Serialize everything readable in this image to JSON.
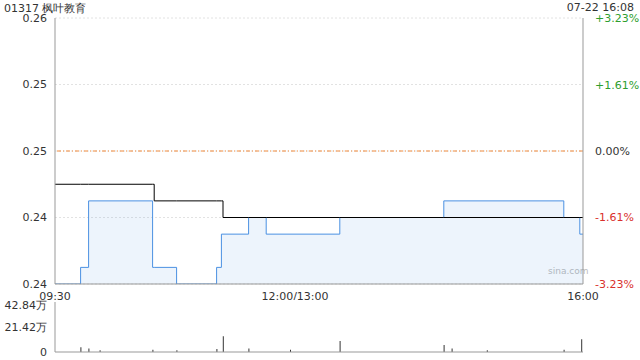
{
  "chart_data": [
    {
      "type": "line",
      "title": "01317 枫叶教育",
      "subtitle": "07-22 16:08",
      "annotations": [
        "sina.com"
      ],
      "x": [
        0,
        16,
        21,
        61,
        62,
        76,
        101,
        104,
        105,
        121,
        132,
        178,
        243,
        318,
        328,
        330
      ],
      "xlim": [
        0,
        330
      ],
      "xticks": [
        {
          "value": 0,
          "label": "09:30"
        },
        {
          "value": 150,
          "label": "12:00/13:00"
        },
        {
          "value": 330,
          "label": "16:00"
        }
      ],
      "ylim": [
        0.24,
        0.256
      ],
      "yticks": [
        {
          "value": 0.24,
          "label": "0.24"
        },
        {
          "value": 0.244,
          "label": "0.24"
        },
        {
          "value": 0.248,
          "label": "0.25"
        },
        {
          "value": 0.252,
          "label": "0.25"
        },
        {
          "value": 0.256,
          "label": "0.26"
        }
      ],
      "y2lim": [
        -3.23,
        3.23
      ],
      "y2ticks": [
        {
          "value": -3.23,
          "label": "-3.23%"
        },
        {
          "value": -1.61,
          "label": "-1.61%"
        },
        {
          "value": 0,
          "label": "0.00%"
        },
        {
          "value": 1.61,
          "label": "+1.61%"
        },
        {
          "value": 3.23,
          "label": "+3.23%"
        }
      ],
      "grid": true,
      "line_style": "step",
      "series": [
        {
          "type": "area",
          "color": "#4a90e2",
          "values": [
            0.24,
            0.241,
            0.245,
            0.241,
            0.241,
            0.24,
            0.241,
            0.243,
            0.243,
            0.244,
            0.243,
            0.244,
            0.245,
            0.244,
            0.243,
            0.243
          ]
        },
        {
          "type": "line",
          "color": "#000000",
          "values": [
            0.246,
            0.246,
            0.246,
            0.246,
            0.245,
            0.245,
            0.245,
            0.245,
            0.244,
            0.244,
            0.244,
            0.244,
            0.244,
            0.244,
            0.244,
            0.244
          ]
        }
      ]
    },
    {
      "type": "bar",
      "x": [
        16,
        21,
        28,
        61,
        76,
        101,
        105,
        121,
        147,
        178,
        243,
        248,
        270,
        318,
        329
      ],
      "values": [
        40000,
        30000,
        15000,
        20000,
        15000,
        25000,
        135000,
        30000,
        20000,
        95000,
        60000,
        30000,
        15000,
        20000,
        110000
      ],
      "color": "#333333",
      "xlim": [
        0,
        330
      ],
      "ylim": [
        0,
        428400
      ],
      "yticks": [
        0,
        {
          "value": 214200,
          "label": "21.42万"
        },
        {
          "value": 428400,
          "label": "42.84万"
        }
      ],
      "tick_labels": "y"
    }
  ]
}
